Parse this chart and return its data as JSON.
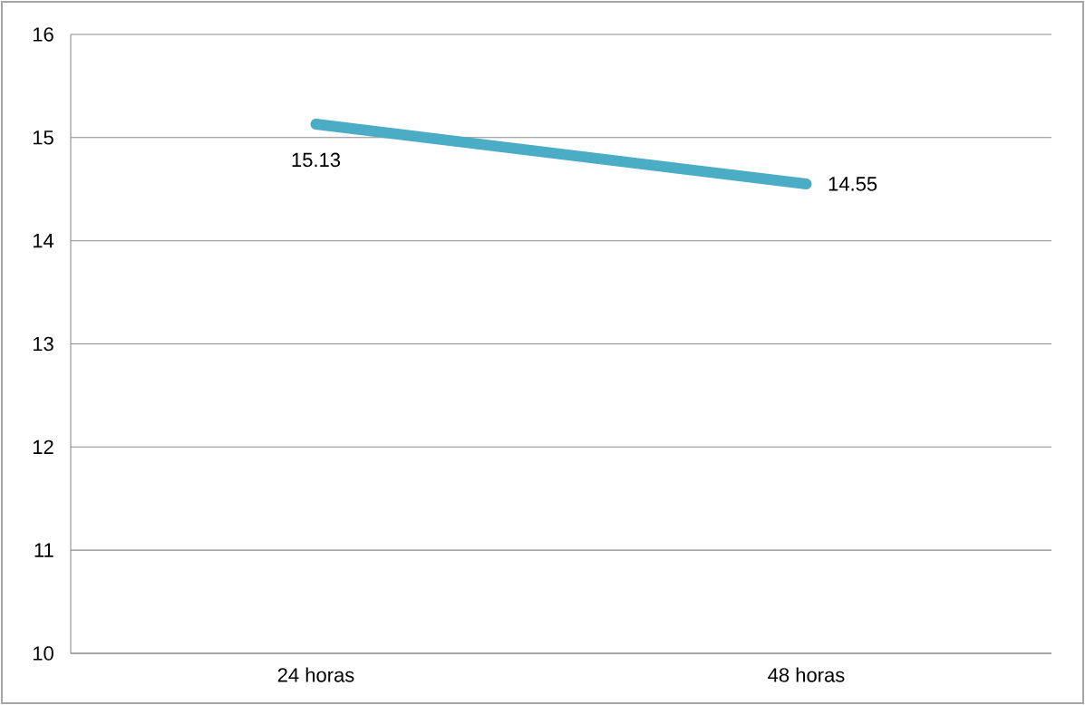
{
  "chart_data": {
    "type": "line",
    "categories": [
      "24 horas",
      "48 horas"
    ],
    "series": [
      {
        "color": "#4bacc6",
        "values": [
          15.13,
          14.55
        ]
      }
    ],
    "ylim": [
      10,
      16
    ],
    "yticks": [
      10,
      11,
      12,
      13,
      14,
      15,
      16
    ],
    "grid": "y",
    "data_labels": true,
    "marker": "none",
    "line_style": "solid"
  }
}
